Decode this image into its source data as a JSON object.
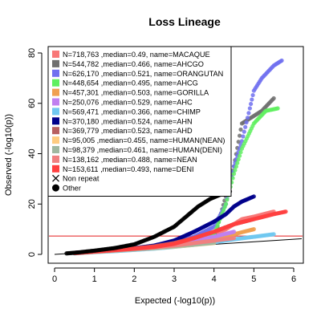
{
  "chart_data": {
    "type": "scatter",
    "title": "Loss Lineage",
    "xlabel": "Expected (-log10(p))",
    "ylabel": "Observed (-log10(p))",
    "xlim": [
      0,
      6
    ],
    "ylim": [
      0,
      80
    ],
    "x_ticks": [
      0,
      1,
      2,
      3,
      4,
      5,
      6
    ],
    "y_ticks": [
      0,
      20,
      40,
      60,
      80
    ],
    "grid": false,
    "legend_position": "top-left",
    "reference_lines": [
      {
        "type": "horizontal",
        "y": 7.3,
        "color": "#e41a1c"
      },
      {
        "type": "diagonal",
        "slope": 1,
        "color": "#000000"
      }
    ],
    "legend_markers": [
      {
        "label": "Non repeat",
        "symbol": "x"
      },
      {
        "label": "Other",
        "symbol": "filled-circle"
      }
    ],
    "series": [
      {
        "name": "MACAQUE",
        "label": "N=718,763 ,median=0.49, name=MACAQUE",
        "color": "#f87878",
        "points": [
          [
            0.5,
            0.6
          ],
          [
            1,
            1.2
          ],
          [
            1.5,
            1.8
          ],
          [
            2,
            2.4
          ],
          [
            2.5,
            3
          ],
          [
            3,
            4.2
          ],
          [
            3.5,
            6
          ],
          [
            4,
            8
          ],
          [
            4.3,
            10
          ],
          [
            4.5,
            12
          ],
          [
            4.7,
            14
          ],
          [
            5,
            15
          ],
          [
            5.5,
            17
          ]
        ]
      },
      {
        "name": "AHCGO",
        "label": "N=544,782 ,median=0.466, name=AHCGO",
        "color": "#707070",
        "points": [
          [
            0.5,
            0.5
          ],
          [
            1,
            1
          ],
          [
            1.5,
            1.5
          ],
          [
            2,
            2
          ],
          [
            2.5,
            2.7
          ],
          [
            3,
            3.5
          ],
          [
            3.5,
            4.5
          ],
          [
            4,
            6
          ],
          [
            4.5,
            35
          ],
          [
            4.7,
            52
          ],
          [
            5.2,
            57
          ],
          [
            5.5,
            62
          ]
        ]
      },
      {
        "name": "ORANGUTAN",
        "label": "N=626,170 ,median=0.521, name=ORANGUTAN",
        "color": "#7070f0",
        "points": [
          [
            0.5,
            0.6
          ],
          [
            1,
            1.2
          ],
          [
            1.5,
            1.7
          ],
          [
            2,
            2.3
          ],
          [
            2.5,
            3
          ],
          [
            3,
            4.5
          ],
          [
            3.5,
            7
          ],
          [
            4,
            11
          ],
          [
            4.3,
            20
          ],
          [
            4.5,
            35
          ],
          [
            4.7,
            45
          ],
          [
            4.9,
            58
          ],
          [
            5,
            65
          ],
          [
            5.2,
            70
          ],
          [
            5.5,
            75
          ],
          [
            5.7,
            77
          ]
        ]
      },
      {
        "name": "AHCG",
        "label": "N=448,654 ,median=0.495, name=AHCG",
        "color": "#60f060",
        "points": [
          [
            0.5,
            0.5
          ],
          [
            1,
            1
          ],
          [
            1.5,
            1.6
          ],
          [
            2,
            2.2
          ],
          [
            2.5,
            2.8
          ],
          [
            3,
            3.6
          ],
          [
            3.5,
            5
          ],
          [
            4,
            8
          ],
          [
            4.3,
            20
          ],
          [
            4.5,
            32
          ],
          [
            4.7,
            42
          ],
          [
            5,
            52
          ],
          [
            5.3,
            57
          ],
          [
            5.6,
            58
          ]
        ]
      },
      {
        "name": "GORILLA",
        "label": "N=457,301 ,median=0.503, name=GORILLA",
        "color": "#f0a050",
        "points": [
          [
            0.5,
            0.5
          ],
          [
            1,
            1.1
          ],
          [
            1.5,
            1.6
          ],
          [
            2,
            2.2
          ],
          [
            2.5,
            2.8
          ],
          [
            3,
            3.5
          ],
          [
            3.5,
            4.5
          ],
          [
            4,
            6
          ],
          [
            4.5,
            8
          ],
          [
            5,
            10
          ]
        ]
      },
      {
        "name": "AHC",
        "label": "N=250,076 ,median=0.529, name=AHC",
        "color": "#c080f0",
        "points": [
          [
            0.5,
            0.6
          ],
          [
            1,
            1.2
          ],
          [
            1.5,
            1.8
          ],
          [
            2,
            2.4
          ],
          [
            2.5,
            3
          ],
          [
            3,
            4
          ],
          [
            3.5,
            5.5
          ],
          [
            4,
            7
          ],
          [
            4.5,
            9
          ]
        ]
      },
      {
        "name": "CHIMP",
        "label": "N=569,471 ,median=0.366, name=CHIMP",
        "color": "#70c8f0",
        "points": [
          [
            0.5,
            0.4
          ],
          [
            1,
            0.9
          ],
          [
            1.5,
            1.3
          ],
          [
            2,
            1.8
          ],
          [
            2.5,
            2.3
          ],
          [
            3,
            3
          ],
          [
            3.5,
            3.8
          ],
          [
            4,
            4.8
          ],
          [
            4.5,
            6
          ],
          [
            5,
            7
          ],
          [
            5.5,
            8
          ]
        ]
      },
      {
        "name": "AHN",
        "label": "N=370,180 ,median=0.524, name=AHN",
        "color": "#00008b",
        "points": [
          [
            0.5,
            0.6
          ],
          [
            1,
            1.2
          ],
          [
            1.5,
            1.8
          ],
          [
            2,
            2.5
          ],
          [
            2.5,
            3.5
          ],
          [
            3,
            5.5
          ],
          [
            3.5,
            9
          ],
          [
            4,
            13
          ],
          [
            4.3,
            16
          ],
          [
            4.5,
            19
          ],
          [
            4.7,
            21
          ],
          [
            5,
            23
          ]
        ]
      },
      {
        "name": "AHD",
        "label": "N=369,779 ,median=0.523, name=AHD",
        "color": "#b86060",
        "points": [
          [
            0.5,
            0.6
          ],
          [
            1,
            1.2
          ],
          [
            1.5,
            1.8
          ],
          [
            2,
            2.4
          ],
          [
            2.5,
            3.2
          ],
          [
            3,
            4.5
          ],
          [
            3.5,
            6.5
          ],
          [
            4,
            9
          ],
          [
            4.5,
            12
          ],
          [
            5,
            14
          ]
        ]
      },
      {
        "name": "HUMAN(NEAN)",
        "label": "N=95,005 ,median=0.455, name=HUMAN(NEAN)",
        "color": "#ffcc80",
        "points": [
          [
            0.5,
            0.5
          ],
          [
            1,
            1
          ],
          [
            1.5,
            1.5
          ],
          [
            2,
            2
          ],
          [
            2.5,
            2.5
          ],
          [
            3,
            3.1
          ],
          [
            3.5,
            3.8
          ],
          [
            4,
            4.5
          ]
        ]
      },
      {
        "name": "HUMAN(DENI)",
        "label": "N=98,379 ,median=0.461, name=HUMAN(DENI)",
        "color": "#a0b8a0",
        "points": [
          [
            0.5,
            0.5
          ],
          [
            1,
            1
          ],
          [
            1.5,
            1.5
          ],
          [
            2,
            2
          ],
          [
            2.5,
            2.6
          ],
          [
            3,
            3.2
          ],
          [
            3.5,
            3.9
          ],
          [
            4,
            4.6
          ]
        ]
      },
      {
        "name": "NEAN",
        "label": "N=138,162 ,median=0.488, name=NEAN",
        "color": "#f08080",
        "points": [
          [
            0.5,
            0.5
          ],
          [
            1,
            1.1
          ],
          [
            1.5,
            1.6
          ],
          [
            2,
            2.2
          ],
          [
            2.5,
            2.8
          ],
          [
            3,
            3.5
          ],
          [
            3.5,
            4.5
          ],
          [
            4,
            5.5
          ],
          [
            4.5,
            6.5
          ]
        ]
      },
      {
        "name": "DENI",
        "label": "N=153,611 ,median=0.493, name=DENI",
        "color": "#ff4040",
        "points": [
          [
            0.5,
            0.5
          ],
          [
            1,
            1.1
          ],
          [
            1.5,
            1.7
          ],
          [
            2,
            2.3
          ],
          [
            2.5,
            3
          ],
          [
            3,
            4.2
          ],
          [
            3.5,
            6.5
          ],
          [
            4,
            9
          ],
          [
            4.5,
            12
          ],
          [
            5,
            14
          ],
          [
            5.5,
            16
          ],
          [
            5.8,
            17
          ]
        ]
      },
      {
        "name": "Other",
        "color": "#000000",
        "points": [
          [
            0.3,
            0.4
          ],
          [
            0.6,
            0.8
          ],
          [
            1,
            1.5
          ],
          [
            1.5,
            2.5
          ],
          [
            2,
            4
          ],
          [
            2.5,
            7
          ],
          [
            3,
            11
          ],
          [
            3.3,
            15
          ],
          [
            3.6,
            19
          ],
          [
            3.9,
            22
          ],
          [
            4.2,
            24
          ],
          [
            4.4,
            25
          ]
        ]
      }
    ]
  }
}
